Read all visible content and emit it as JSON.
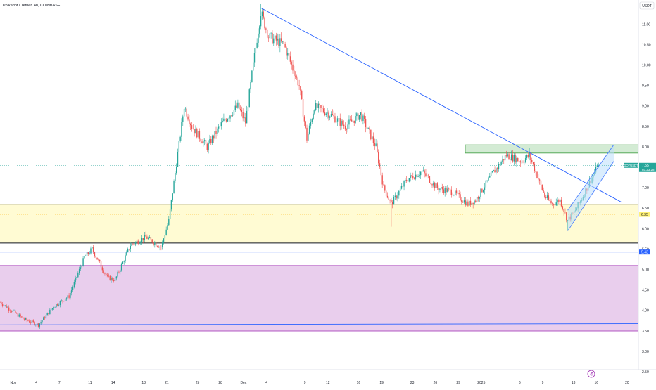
{
  "header": {
    "symbol_title": "Polkadot / Tether, 4h, COINBASE",
    "currency_button": "USDT"
  },
  "price_axis": {
    "labels": [
      "11.00",
      "10.50",
      "10.00",
      "9.50",
      "9.00",
      "8.50",
      "8.00",
      "7.50",
      "7.00",
      "6.50",
      "6.00",
      "5.50",
      "5.00",
      "4.50",
      "4.00",
      "3.50",
      "3.00",
      "2.50"
    ],
    "current_price_tag": {
      "symbol": "DOTUSDT",
      "price": "7.55",
      "countdown": "03:23:28",
      "value": 7.55
    },
    "level_tags": [
      {
        "label": "6.35",
        "value": 6.35,
        "bg": "#fff176",
        "fg": "#131722"
      },
      {
        "label": "5.43",
        "value": 5.43,
        "bg": "#2962ff",
        "fg": "#ffffff"
      }
    ]
  },
  "time_axis": {
    "labels": [
      "Nov",
      "4",
      "7",
      "11",
      "14",
      "18",
      "21",
      "25",
      "28",
      "Dec",
      "4",
      "9",
      "12",
      "16",
      "19",
      "23",
      "26",
      "29",
      "2025",
      "6",
      "9",
      "13",
      "16",
      "20",
      "23"
    ]
  },
  "colors": {
    "up": "#26a69a",
    "down": "#ef5350",
    "trendline": "#2962ff",
    "yellow_zone": "#fff9c4",
    "purple_zone": "#e1bee7",
    "green_zone": "#c8e6c9",
    "channel_fill": "#bbdefb"
  },
  "chart_data": {
    "type": "candlestick",
    "title": "Polkadot / Tether, 4h, COINBASE",
    "x_range": [
      "Oct 31 2024",
      "Jan 23 2025"
    ],
    "y_range": [
      2.5,
      11.5
    ],
    "price_path": [
      {
        "date": "Oct 31",
        "price": 4.2
      },
      {
        "date": "Nov 3",
        "price": 3.8
      },
      {
        "date": "Nov 5",
        "price": 3.65
      },
      {
        "date": "Nov 7",
        "price": 4.1
      },
      {
        "date": "Nov 9",
        "price": 4.35
      },
      {
        "date": "Nov 11",
        "price": 5.3
      },
      {
        "date": "Nov 12",
        "price": 5.5
      },
      {
        "date": "Nov 14",
        "price": 4.8
      },
      {
        "date": "Nov 15",
        "price": 4.75
      },
      {
        "date": "Nov 17",
        "price": 5.6
      },
      {
        "date": "Nov 19",
        "price": 5.8
      },
      {
        "date": "Nov 21",
        "price": 5.55
      },
      {
        "date": "Nov 22",
        "price": 6.2
      },
      {
        "date": "Nov 23",
        "price": 7.6
      },
      {
        "date": "Nov 24",
        "price": 9.0
      },
      {
        "date": "Nov 25",
        "price": 8.5
      },
      {
        "date": "Nov 27",
        "price": 8.0
      },
      {
        "date": "Nov 29",
        "price": 8.6
      },
      {
        "date": "Dec 1",
        "price": 9.0
      },
      {
        "date": "Dec 2",
        "price": 8.6
      },
      {
        "date": "Dec 3",
        "price": 10.0
      },
      {
        "date": "Dec 4",
        "price": 11.3
      },
      {
        "date": "Dec 5",
        "price": 10.7
      },
      {
        "date": "Dec 7",
        "price": 10.5
      },
      {
        "date": "Dec 9",
        "price": 9.5
      },
      {
        "date": "Dec 10",
        "price": 8.2
      },
      {
        "date": "Dec 11",
        "price": 9.0
      },
      {
        "date": "Dec 13",
        "price": 8.8
      },
      {
        "date": "Dec 15",
        "price": 8.5
      },
      {
        "date": "Dec 17",
        "price": 8.8
      },
      {
        "date": "Dec 19",
        "price": 8.0
      },
      {
        "date": "Dec 20",
        "price": 7.0
      },
      {
        "date": "Dec 21",
        "price": 6.6
      },
      {
        "date": "Dec 23",
        "price": 7.2
      },
      {
        "date": "Dec 25",
        "price": 7.4
      },
      {
        "date": "Dec 27",
        "price": 7.0
      },
      {
        "date": "Dec 29",
        "price": 6.9
      },
      {
        "date": "Dec 31",
        "price": 6.6
      },
      {
        "date": "Jan 1",
        "price": 6.7
      },
      {
        "date": "Jan 3",
        "price": 7.3
      },
      {
        "date": "Jan 5",
        "price": 7.8
      },
      {
        "date": "Jan 7",
        "price": 7.65
      },
      {
        "date": "Jan 8",
        "price": 7.8
      },
      {
        "date": "Jan 9",
        "price": 7.3
      },
      {
        "date": "Jan 10",
        "price": 6.8
      },
      {
        "date": "Jan 11",
        "price": 6.6
      },
      {
        "date": "Jan 12",
        "price": 6.7
      },
      {
        "date": "Jan 13",
        "price": 6.2
      },
      {
        "date": "Jan 14",
        "price": 6.45
      },
      {
        "date": "Jan 15",
        "price": 6.8
      },
      {
        "date": "Jan 16",
        "price": 7.2
      },
      {
        "date": "Jan 17",
        "price": 7.55
      }
    ],
    "wick_extremes": [
      {
        "date": "Nov 24",
        "price": 10.5
      },
      {
        "date": "Dec 4",
        "price": 11.5
      },
      {
        "date": "Dec 21",
        "price": 6.05
      },
      {
        "date": "Jan 13",
        "price": 5.95
      }
    ],
    "last_price": 7.55,
    "zones": [
      {
        "name": "resistance",
        "from": 7.85,
        "to": 8.05,
        "start": "Jan 2",
        "end": "Jan 23"
      },
      {
        "name": "support",
        "from": 5.65,
        "to": 6.6,
        "start": "Oct 31",
        "end": "Jan 23"
      },
      {
        "name": "demand",
        "from": 3.5,
        "to": 5.1,
        "start": "Oct 31",
        "end": "Jan 23"
      }
    ],
    "lines": [
      {
        "name": "descending-trendline",
        "from": {
          "date": "Dec 4",
          "price": 11.4
        },
        "to": {
          "date": "Jan 20",
          "price": 6.65
        }
      },
      {
        "name": "horizontal-5.43",
        "price": 5.43
      },
      {
        "name": "channel-upper",
        "from": {
          "date": "Jan 13",
          "price": 6.45
        },
        "to": {
          "date": "Jan 19",
          "price": 8.05
        }
      },
      {
        "name": "channel-lower",
        "from": {
          "date": "Jan 13",
          "price": 5.95
        },
        "to": {
          "date": "Jan 19",
          "price": 7.65
        }
      }
    ],
    "grid": false
  }
}
